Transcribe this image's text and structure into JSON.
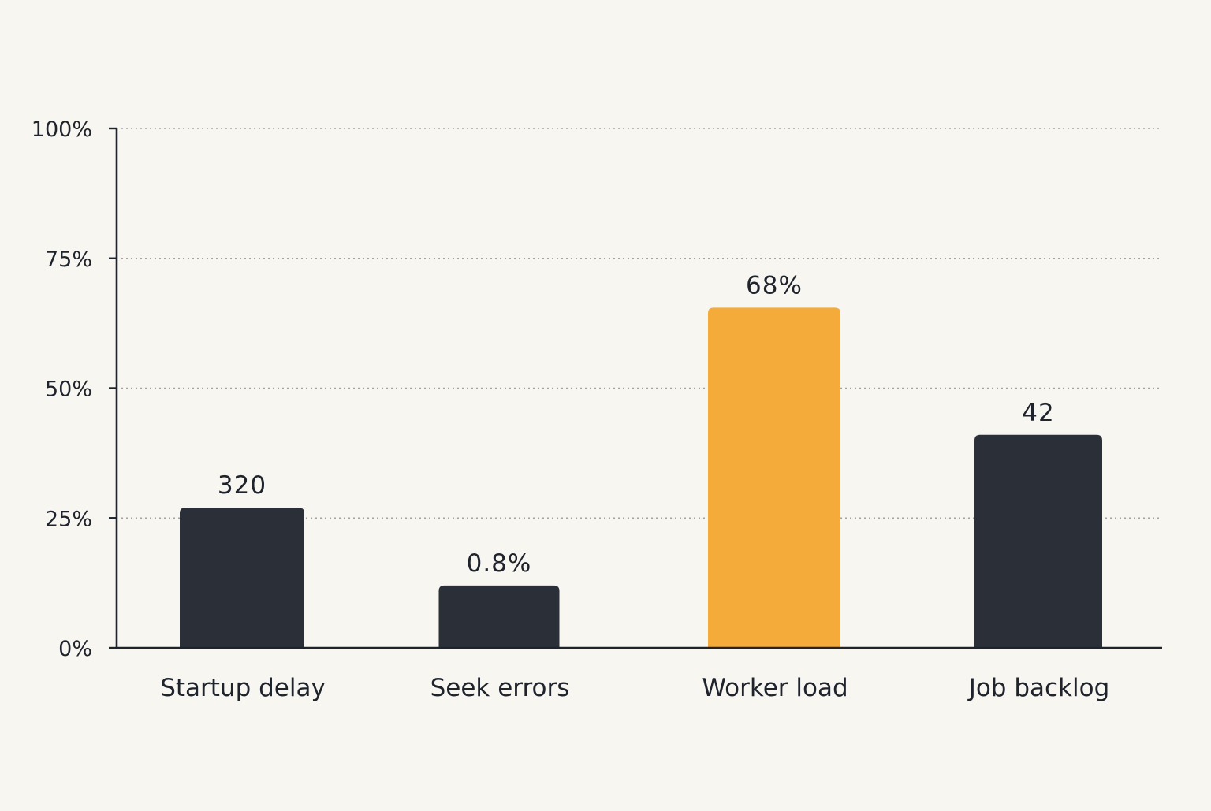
{
  "chart_data": {
    "type": "bar",
    "title": "",
    "xlabel": "",
    "ylabel": "",
    "ylim": [
      0,
      100
    ],
    "yticks": [
      "0%",
      "25%",
      "50%",
      "75%",
      "100%"
    ],
    "ytick_values": [
      0,
      25,
      50,
      75,
      100
    ],
    "grid": "horizontal dotted",
    "legend": "none",
    "categories": [
      "Startup delay",
      "Seek errors",
      "Worker load",
      "Job backlog"
    ],
    "values": [
      27,
      12,
      65.5,
      41
    ],
    "value_labels": [
      "320",
      "0.8%",
      "68%",
      "42"
    ],
    "colors": [
      "#2a2f38",
      "#2a2f38",
      "#f5ab3a",
      "#2a2f38"
    ],
    "highlight_category": "Worker load"
  },
  "colors": {
    "background": "#f8f6f1",
    "bar_default": "#2a2f38",
    "bar_highlight": "#f5ab3a",
    "axis": "#1f242c",
    "grid": "#a3a3a3"
  }
}
